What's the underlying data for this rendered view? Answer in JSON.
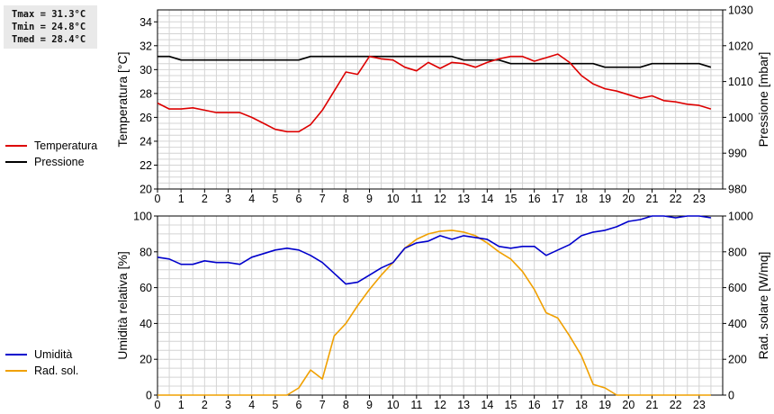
{
  "stats": {
    "tmax": "Tmax = 31.3°C",
    "tmin": "Tmin = 24.8°C",
    "tmed": "Tmed = 28.4°C"
  },
  "colors": {
    "temperature": "#dd0000",
    "pressure": "#000000",
    "humidity": "#0000cc",
    "radiation": "#f0a000",
    "grid": "#d4d4d4"
  },
  "chart_data": [
    {
      "type": "line",
      "xlabel": "",
      "x_ticks": [
        "0",
        "1",
        "2",
        "3",
        "4",
        "5",
        "6",
        "7",
        "8",
        "9",
        "10",
        "11",
        "12",
        "13",
        "14",
        "15",
        "16",
        "17",
        "18",
        "19",
        "20",
        "21",
        "22",
        "23"
      ],
      "xlim": [
        0,
        24
      ],
      "ylabel_left": "Temperatura [°C]",
      "ylim_left": [
        20,
        35
      ],
      "yticks_left": [
        "20",
        "22",
        "24",
        "26",
        "28",
        "30",
        "32",
        "34"
      ],
      "ylabel_right": "Pressione [mbar]",
      "ylim_right": [
        980,
        1030
      ],
      "yticks_right": [
        "980",
        "990",
        "1000",
        "1010",
        "1020",
        "1030"
      ],
      "grid": true,
      "legend": "left",
      "series": [
        {
          "name": "Temperatura",
          "axis": "left",
          "color": "#dd0000",
          "x": [
            0,
            0.5,
            1,
            1.5,
            2,
            2.5,
            3,
            3.5,
            4,
            4.5,
            5,
            5.5,
            6,
            6.5,
            7,
            7.5,
            8,
            8.5,
            9,
            9.5,
            10,
            10.5,
            11,
            11.5,
            12,
            12.5,
            13,
            13.5,
            14,
            14.5,
            15,
            15.5,
            16,
            16.5,
            17,
            17.5,
            18,
            18.5,
            19,
            19.5,
            20,
            20.5,
            21,
            21.5,
            22,
            22.5,
            23,
            23.5
          ],
          "values": [
            27.2,
            26.7,
            26.7,
            26.8,
            26.6,
            26.4,
            26.4,
            26.4,
            26.0,
            25.5,
            25.0,
            24.8,
            24.8,
            25.4,
            26.6,
            28.2,
            29.8,
            29.6,
            31.1,
            30.9,
            30.8,
            30.2,
            29.9,
            30.6,
            30.1,
            30.6,
            30.5,
            30.2,
            30.6,
            30.9,
            31.1,
            31.1,
            30.7,
            31.0,
            31.3,
            30.6,
            29.5,
            28.8,
            28.4,
            28.2,
            27.9,
            27.6,
            27.8,
            27.4,
            27.3,
            27.1,
            27.0,
            26.7
          ]
        },
        {
          "name": "Pressione",
          "axis": "right",
          "color": "#000000",
          "x": [
            0,
            0.5,
            1,
            1.5,
            2,
            2.5,
            3,
            3.5,
            4,
            4.5,
            5,
            5.5,
            6,
            6.5,
            7,
            7.5,
            8,
            8.5,
            9,
            9.5,
            10,
            10.5,
            11,
            11.5,
            12,
            12.5,
            13,
            13.5,
            14,
            14.5,
            15,
            15.5,
            16,
            16.5,
            17,
            17.5,
            18,
            18.5,
            19,
            19.5,
            20,
            20.5,
            21,
            21.5,
            22,
            22.5,
            23,
            23.5
          ],
          "values": [
            1017,
            1017,
            1016,
            1016,
            1016,
            1016,
            1016,
            1016,
            1016,
            1016,
            1016,
            1016,
            1016,
            1017,
            1017,
            1017,
            1017,
            1017,
            1017,
            1017,
            1017,
            1017,
            1017,
            1017,
            1017,
            1017,
            1016,
            1016,
            1016,
            1016,
            1015,
            1015,
            1015,
            1015,
            1015,
            1015,
            1015,
            1015,
            1014,
            1014,
            1014,
            1014,
            1015,
            1015,
            1015,
            1015,
            1015,
            1014
          ]
        }
      ]
    },
    {
      "type": "line",
      "xlabel": "",
      "x_ticks": [
        "0",
        "1",
        "2",
        "3",
        "4",
        "5",
        "6",
        "7",
        "8",
        "9",
        "10",
        "11",
        "12",
        "13",
        "14",
        "15",
        "16",
        "17",
        "18",
        "19",
        "20",
        "21",
        "22",
        "23"
      ],
      "xlim": [
        0,
        24
      ],
      "ylabel_left": "Umidità relativa [%]",
      "ylim_left": [
        0,
        100
      ],
      "yticks_left": [
        "0",
        "20",
        "40",
        "60",
        "80",
        "100"
      ],
      "ylabel_right": "Rad. solare [W/mq]",
      "ylim_right": [
        0,
        1000
      ],
      "yticks_right": [
        "0",
        "200",
        "400",
        "600",
        "800",
        "1000"
      ],
      "grid": true,
      "legend": "left",
      "series": [
        {
          "name": "Umidità",
          "axis": "left",
          "color": "#0000cc",
          "x": [
            0,
            0.5,
            1,
            1.5,
            2,
            2.5,
            3,
            3.5,
            4,
            4.5,
            5,
            5.5,
            6,
            6.5,
            7,
            7.5,
            8,
            8.5,
            9,
            9.5,
            10,
            10.5,
            11,
            11.5,
            12,
            12.5,
            13,
            13.5,
            14,
            14.5,
            15,
            15.5,
            16,
            16.5,
            17,
            17.5,
            18,
            18.5,
            19,
            19.5,
            20,
            20.5,
            21,
            21.5,
            22,
            22.5,
            23,
            23.5
          ],
          "values": [
            77,
            76,
            73,
            73,
            75,
            74,
            74,
            73,
            77,
            79,
            81,
            82,
            81,
            78,
            74,
            68,
            62,
            63,
            67,
            71,
            74,
            82,
            85,
            86,
            89,
            87,
            89,
            88,
            87,
            83,
            82,
            83,
            83,
            78,
            81,
            84,
            89,
            91,
            92,
            94,
            97,
            98,
            100,
            100,
            99,
            100,
            100,
            99
          ]
        },
        {
          "name": "Rad. sol.",
          "axis": "right",
          "color": "#f0a000",
          "x": [
            0,
            0.5,
            1,
            1.5,
            2,
            2.5,
            3,
            3.5,
            4,
            4.5,
            5,
            5.5,
            6,
            6.5,
            7,
            7.5,
            8,
            8.5,
            9,
            9.5,
            10,
            10.5,
            11,
            11.5,
            12,
            12.5,
            13,
            13.5,
            14,
            14.5,
            15,
            15.5,
            16,
            16.5,
            17,
            17.5,
            18,
            18.5,
            19,
            19.5,
            20,
            20.5,
            21,
            21.5,
            22,
            22.5,
            23,
            23.5
          ],
          "values": [
            0,
            0,
            0,
            0,
            0,
            0,
            0,
            0,
            0,
            0,
            0,
            0,
            40,
            140,
            90,
            330,
            400,
            500,
            590,
            670,
            740,
            820,
            870,
            900,
            915,
            920,
            910,
            890,
            850,
            800,
            760,
            690,
            590,
            460,
            430,
            330,
            220,
            60,
            40,
            0,
            0,
            0,
            0,
            0,
            0,
            0,
            0,
            0
          ]
        }
      ]
    }
  ]
}
